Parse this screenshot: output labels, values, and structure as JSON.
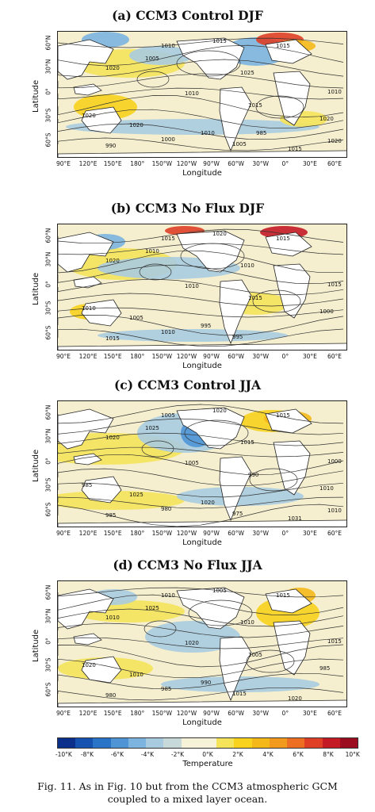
{
  "panels": [
    {
      "title": "(a) CCM3 Control DJF",
      "contours": [
        "1010",
        "1015",
        "1005",
        "1015",
        "1020",
        "1025",
        "1010",
        "1010",
        "1015",
        "1020",
        "1020",
        "1020",
        "1010",
        "1000",
        "990",
        "1005",
        "1015",
        "1020",
        "985"
      ]
    },
    {
      "title": "(b) CCM3 No Flux DJF",
      "contours": [
        "1015",
        "1020",
        "1010",
        "1015",
        "1020",
        "1010",
        "1010",
        "1015",
        "1015",
        "1010",
        "1005",
        "1000",
        "995",
        "1010",
        "1015",
        "995"
      ]
    },
    {
      "title": "(c) CCM3 Control JJA",
      "contours": [
        "1005",
        "1020",
        "1025",
        "1015",
        "1020",
        "1015",
        "1005",
        "1000",
        "990",
        "985",
        "1025",
        "1010",
        "1020",
        "980",
        "985",
        "975",
        "1031",
        "1010"
      ]
    },
    {
      "title": "(d) CCM3 No Flux JJA",
      "contours": [
        "1010",
        "1005",
        "1025",
        "1015",
        "1010",
        "1010",
        "1020",
        "1015",
        "1005",
        "1020",
        "1010",
        "985",
        "990",
        "985",
        "980",
        "1015",
        "1020"
      ]
    }
  ],
  "axes": {
    "ylabel": "Latitude",
    "xlabel": "Longitude",
    "yticks": [
      "60°N",
      "30°N",
      "0°",
      "30°S",
      "60°S"
    ],
    "xticks": [
      "90°E",
      "120°E",
      "150°E",
      "180°",
      "150°W",
      "120°W",
      "90°W",
      "60°W",
      "30°W",
      "0°",
      "30°E",
      "60°E"
    ]
  },
  "colorbar": {
    "label": "Temperature",
    "ticks": [
      "-10°K",
      "-8°K",
      "-6°K",
      "-4°K",
      "-2°K",
      "0°K",
      "2°K",
      "4°K",
      "6°K",
      "8°K",
      "10°K"
    ],
    "colors": [
      "#0b2f8a",
      "#1652b0",
      "#2a74c8",
      "#4f95d6",
      "#7cb3df",
      "#a9cbe0",
      "#c7dad9",
      "#f7f3d8",
      "#f7f3d8",
      "#f5e35a",
      "#f8d21c",
      "#f5b81a",
      "#f29a1e",
      "#ec6f23",
      "#df3f26",
      "#c41a25",
      "#9a0c1e"
    ]
  },
  "caption": {
    "line1": "Fig. 11. As in Fig. 10 but from the CCM3 atmospheric GCM",
    "line2": "coupled to a mixed layer ocean."
  }
}
